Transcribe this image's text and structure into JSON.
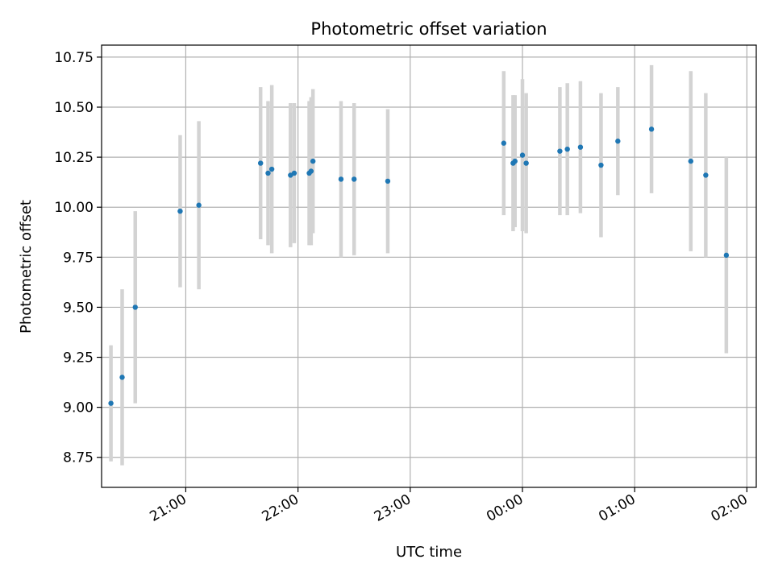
{
  "chart_data": {
    "type": "scatter",
    "title": "Photometric offset variation",
    "xlabel": "UTC time",
    "ylabel": "Photometric offset",
    "xlim": [
      "20:15",
      "02:05"
    ],
    "ylim": [
      8.6,
      10.81
    ],
    "x_day_offset_note": "",
    "x_ticks": [
      "21:00",
      "22:00",
      "23:00",
      "00:00",
      "01:00",
      "02:00"
    ],
    "y_ticks": [
      8.75,
      9.0,
      9.25,
      9.5,
      9.75,
      10.0,
      10.25,
      10.5,
      10.75
    ],
    "y_tick_labels": [
      "8.75",
      "9.00",
      "9.25",
      "9.50",
      "9.75",
      "10.00",
      "10.25",
      "10.50",
      "10.75"
    ],
    "grid": true,
    "colors": {
      "points": "#1f77b4",
      "errorbars": "#d3d3d3",
      "grid": "#b0b0b0"
    },
    "series": [
      {
        "points": [
          {
            "x": "20:20",
            "y": 9.02,
            "err": 0.29
          },
          {
            "x": "20:26",
            "y": 9.15,
            "err": 0.44
          },
          {
            "x": "20:33",
            "y": 9.5,
            "err": 0.48
          },
          {
            "x": "20:57",
            "y": 9.98,
            "err": 0.38
          },
          {
            "x": "21:07",
            "y": 10.01,
            "err": 0.42
          },
          {
            "x": "21:40",
            "y": 10.22,
            "err": 0.38
          },
          {
            "x": "21:44",
            "y": 10.17,
            "err": 0.36
          },
          {
            "x": "21:46",
            "y": 10.19,
            "err": 0.42
          },
          {
            "x": "21:56",
            "y": 10.16,
            "err": 0.36
          },
          {
            "x": "21:58",
            "y": 10.17,
            "err": 0.35
          },
          {
            "x": "22:06",
            "y": 10.17,
            "err": 0.36
          },
          {
            "x": "22:07",
            "y": 10.18,
            "err": 0.37
          },
          {
            "x": "22:08",
            "y": 10.23,
            "err": 0.36
          },
          {
            "x": "22:23",
            "y": 10.14,
            "err": 0.39
          },
          {
            "x": "22:30",
            "y": 10.14,
            "err": 0.38
          },
          {
            "x": "22:48",
            "y": 10.13,
            "err": 0.36
          },
          {
            "x": "23:50",
            "y": 10.32,
            "err": 0.36
          },
          {
            "x": "23:55",
            "y": 10.22,
            "err": 0.34
          },
          {
            "x": "23:56",
            "y": 10.23,
            "err": 0.33
          },
          {
            "x": "00:00",
            "y": 10.26,
            "err": 0.38
          },
          {
            "x": "00:02",
            "y": 10.22,
            "err": 0.35
          },
          {
            "x": "00:20",
            "y": 10.28,
            "err": 0.32
          },
          {
            "x": "00:24",
            "y": 10.29,
            "err": 0.33
          },
          {
            "x": "00:31",
            "y": 10.3,
            "err": 0.33
          },
          {
            "x": "00:42",
            "y": 10.21,
            "err": 0.36
          },
          {
            "x": "00:51",
            "y": 10.33,
            "err": 0.27
          },
          {
            "x": "01:09",
            "y": 10.39,
            "err": 0.32
          },
          {
            "x": "01:30",
            "y": 10.23,
            "err": 0.45
          },
          {
            "x": "01:38",
            "y": 10.16,
            "err": 0.41
          },
          {
            "x": "01:49",
            "y": 9.76,
            "err": 0.49
          }
        ]
      }
    ]
  }
}
